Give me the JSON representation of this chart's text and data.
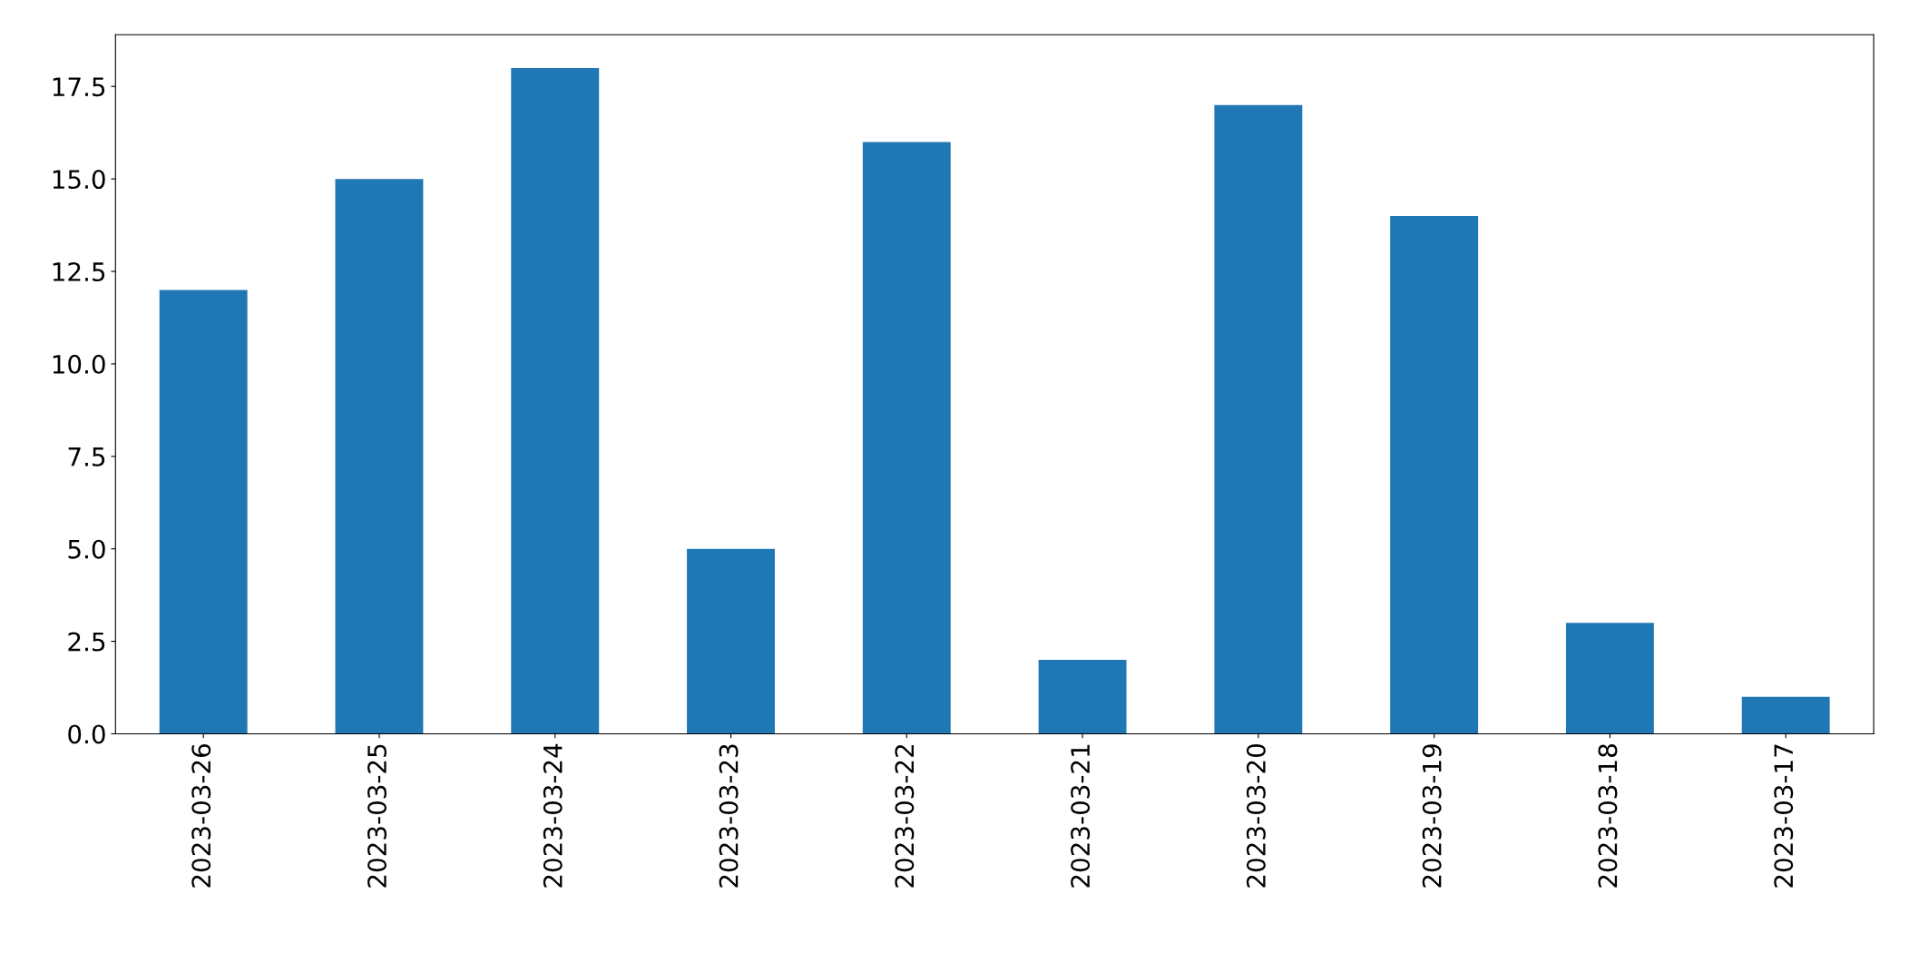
{
  "chart_data": {
    "type": "bar",
    "categories": [
      "2023-03-26",
      "2023-03-25",
      "2023-03-24",
      "2023-03-23",
      "2023-03-22",
      "2023-03-21",
      "2023-03-20",
      "2023-03-19",
      "2023-03-18",
      "2023-03-17"
    ],
    "values": [
      12,
      15,
      18,
      5,
      16,
      2,
      17,
      14,
      3,
      1
    ],
    "color": "#1f77b4",
    "ylim": [
      0,
      18.9
    ],
    "yticks": [
      {
        "value": 0,
        "label": "0.0"
      },
      {
        "value": 2.5,
        "label": "2.5"
      },
      {
        "value": 5,
        "label": "5.0"
      },
      {
        "value": 7.5,
        "label": "7.5"
      },
      {
        "value": 10,
        "label": "10.0"
      },
      {
        "value": 12.5,
        "label": "12.5"
      },
      {
        "value": 15,
        "label": "15.0"
      },
      {
        "value": 17.5,
        "label": "17.5"
      }
    ],
    "grid": false,
    "legend": false
  }
}
